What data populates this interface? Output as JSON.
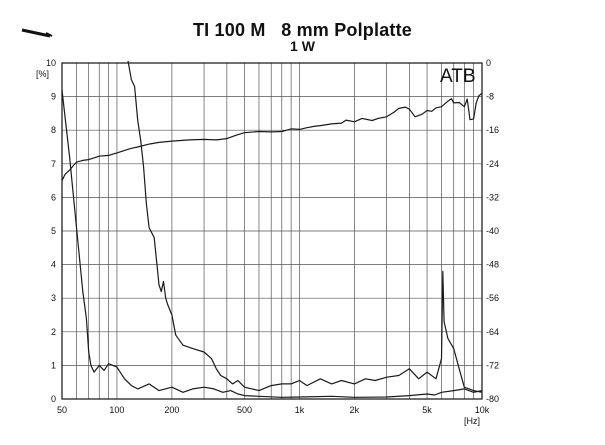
{
  "header": {
    "title_left": "TI 100 M",
    "title_right": "8 mm Polplatte",
    "subtitle": "1 W"
  },
  "chart_data": {
    "type": "line",
    "title": "TI 100 M   8 mm Polplatte",
    "subtitle": "1 W",
    "annotation": "ATB",
    "x_scale": "log",
    "xlim": [
      50,
      10000
    ],
    "x_ticks": [
      50,
      100,
      200,
      500,
      1000,
      2000,
      5000,
      10000
    ],
    "x_tick_labels": [
      "50",
      "100",
      "200",
      "500",
      "1k",
      "2k",
      "5k",
      "10k"
    ],
    "x_unit": "[Hz]",
    "y_left": {
      "unit": "[%]",
      "lim": [
        0,
        10
      ],
      "ticks": [
        0,
        1,
        2,
        3,
        4,
        5,
        6,
        7,
        8,
        9,
        10
      ]
    },
    "y_right": {
      "lim": [
        -80,
        0
      ],
      "ticks": [
        -80,
        -72,
        -64,
        -56,
        -48,
        -40,
        -32,
        -24,
        -16,
        -8,
        0
      ]
    },
    "grid": true,
    "colors": {
      "line": "#1a1a1a",
      "grid": "#555555",
      "background": "#ffffff"
    },
    "series": [
      {
        "axis": "right",
        "points": [
          [
            50,
            -28
          ],
          [
            52,
            -26.5
          ],
          [
            55,
            -25.5
          ],
          [
            58,
            -24.3
          ],
          [
            60,
            -23.6
          ],
          [
            65,
            -23.2
          ],
          [
            70,
            -23
          ],
          [
            80,
            -22.2
          ],
          [
            90,
            -22
          ],
          [
            100,
            -21.4
          ],
          [
            110,
            -20.8
          ],
          [
            120,
            -20.3
          ],
          [
            130,
            -20
          ],
          [
            150,
            -19.3
          ],
          [
            170,
            -18.9
          ],
          [
            200,
            -18.6
          ],
          [
            250,
            -18.3
          ],
          [
            300,
            -18.2
          ],
          [
            350,
            -18.3
          ],
          [
            400,
            -18
          ],
          [
            450,
            -17.2
          ],
          [
            500,
            -16.6
          ],
          [
            600,
            -16.3
          ],
          [
            700,
            -16.4
          ],
          [
            800,
            -16.3
          ],
          [
            900,
            -15.7
          ],
          [
            1000,
            -15.8
          ],
          [
            1100,
            -15.4
          ],
          [
            1200,
            -15.1
          ],
          [
            1300,
            -14.9
          ],
          [
            1500,
            -14.5
          ],
          [
            1700,
            -14.3
          ],
          [
            1800,
            -13.6
          ],
          [
            2000,
            -14
          ],
          [
            2200,
            -13.2
          ],
          [
            2500,
            -13.7
          ],
          [
            2700,
            -13.2
          ],
          [
            3000,
            -12.8
          ],
          [
            3300,
            -11.7
          ],
          [
            3500,
            -10.8
          ],
          [
            3800,
            -10.5
          ],
          [
            4000,
            -11
          ],
          [
            4300,
            -12.8
          ],
          [
            4700,
            -12.2
          ],
          [
            5000,
            -11.3
          ],
          [
            5300,
            -11.5
          ],
          [
            5600,
            -10.7
          ],
          [
            6000,
            -10.4
          ],
          [
            6500,
            -9.1
          ],
          [
            6800,
            -8.5
          ],
          [
            7000,
            -9.5
          ],
          [
            7500,
            -9.4
          ],
          [
            8000,
            -10.4
          ],
          [
            8300,
            -8.6
          ],
          [
            8600,
            -13.5
          ],
          [
            9000,
            -13.3
          ],
          [
            9300,
            -9.5
          ],
          [
            9600,
            -7.8
          ],
          [
            10000,
            -7.2
          ]
        ]
      },
      {
        "axis": "left",
        "points": [
          [
            50,
            9.2
          ],
          [
            55,
            7.2
          ],
          [
            60,
            5.1
          ],
          [
            65,
            3.2
          ],
          [
            68,
            2.4
          ],
          [
            70,
            1.4
          ],
          [
            72,
            1.0
          ],
          [
            75,
            0.8
          ],
          [
            80,
            1.0
          ],
          [
            85,
            0.85
          ],
          [
            90,
            1.05
          ],
          [
            100,
            0.95
          ],
          [
            110,
            0.6
          ],
          [
            120,
            0.4
          ],
          [
            130,
            0.3
          ],
          [
            150,
            0.45
          ],
          [
            170,
            0.25
          ],
          [
            200,
            0.35
          ],
          [
            230,
            0.2
          ],
          [
            260,
            0.3
          ],
          [
            300,
            0.35
          ],
          [
            340,
            0.3
          ],
          [
            380,
            0.2
          ],
          [
            420,
            0.25
          ],
          [
            460,
            0.15
          ],
          [
            500,
            0.1
          ],
          [
            600,
            0.08
          ],
          [
            800,
            0.05
          ],
          [
            1000,
            0.06
          ],
          [
            1500,
            0.08
          ],
          [
            2000,
            0.05
          ],
          [
            3000,
            0.06
          ],
          [
            4000,
            0.1
          ],
          [
            5000,
            0.15
          ],
          [
            5500,
            0.12
          ],
          [
            6000,
            0.2
          ],
          [
            7000,
            0.25
          ],
          [
            8000,
            0.3
          ],
          [
            9000,
            0.2
          ],
          [
            10000,
            0.25
          ]
        ]
      },
      {
        "axis": "left",
        "points": [
          [
            115,
            10.2
          ],
          [
            120,
            9.5
          ],
          [
            125,
            9.3
          ],
          [
            130,
            8.3
          ],
          [
            135,
            7.7
          ],
          [
            140,
            6.9
          ],
          [
            145,
            5.8
          ],
          [
            150,
            5.1
          ],
          [
            160,
            4.8
          ],
          [
            165,
            4.1
          ],
          [
            170,
            3.4
          ],
          [
            175,
            3.2
          ],
          [
            180,
            3.5
          ],
          [
            185,
            3.0
          ],
          [
            190,
            2.8
          ],
          [
            200,
            2.5
          ],
          [
            210,
            1.9
          ],
          [
            230,
            1.6
          ],
          [
            260,
            1.5
          ],
          [
            300,
            1.4
          ],
          [
            330,
            1.2
          ],
          [
            350,
            0.9
          ],
          [
            370,
            0.7
          ],
          [
            400,
            0.6
          ],
          [
            430,
            0.45
          ],
          [
            460,
            0.55
          ],
          [
            500,
            0.35
          ],
          [
            550,
            0.3
          ],
          [
            600,
            0.25
          ],
          [
            700,
            0.4
          ],
          [
            800,
            0.45
          ],
          [
            900,
            0.45
          ],
          [
            1000,
            0.55
          ],
          [
            1100,
            0.4
          ],
          [
            1300,
            0.6
          ],
          [
            1500,
            0.45
          ],
          [
            1700,
            0.55
          ],
          [
            2000,
            0.45
          ],
          [
            2300,
            0.6
          ],
          [
            2600,
            0.55
          ],
          [
            3000,
            0.65
          ],
          [
            3500,
            0.7
          ],
          [
            4000,
            0.9
          ],
          [
            4500,
            0.6
          ],
          [
            5000,
            0.8
          ],
          [
            5600,
            0.6
          ],
          [
            6000,
            1.2
          ],
          [
            6100,
            3.8
          ],
          [
            6200,
            2.3
          ],
          [
            6500,
            1.8
          ],
          [
            7000,
            1.5
          ],
          [
            7500,
            0.9
          ],
          [
            8000,
            0.35
          ],
          [
            9000,
            0.25
          ],
          [
            10000,
            0.2
          ]
        ]
      }
    ]
  }
}
